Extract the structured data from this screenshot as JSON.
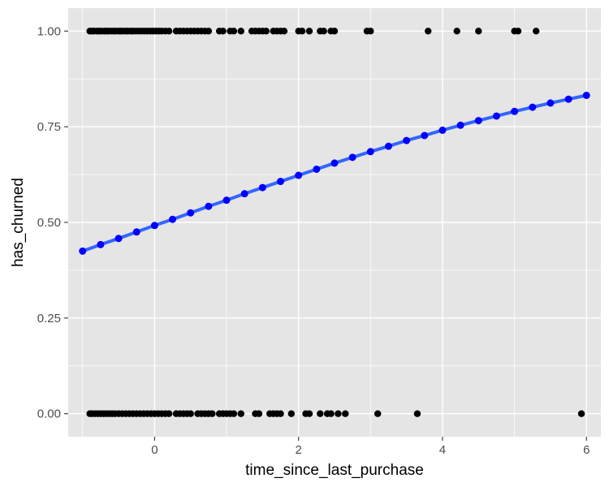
{
  "chart_data": {
    "type": "scatter",
    "title": "",
    "xlabel": "time_since_last_purchase",
    "ylabel": "has_churned",
    "xlim": [
      -1.2,
      6.2
    ],
    "ylim": [
      -0.06,
      1.06
    ],
    "x_ticks": [
      0,
      2,
      4,
      6
    ],
    "x_tick_labels": [
      "0",
      "2",
      "4",
      "6"
    ],
    "y_ticks": [
      0,
      0.25,
      0.5,
      0.75,
      1
    ],
    "y_tick_labels": [
      "0.00",
      "0.25",
      "0.50",
      "0.75",
      "1.00"
    ],
    "grid": true,
    "legend": "none",
    "colors": {
      "panel": "#e5e5e5",
      "grid": "#ffffff",
      "observed_points": "#000000",
      "fit_line": "#3366ff",
      "predicted_points": "#0000ff"
    },
    "series": [
      {
        "kind": "observed-churned",
        "x": [
          -0.9,
          -0.87,
          -0.84,
          -0.8,
          -0.77,
          -0.74,
          -0.7,
          -0.67,
          -0.64,
          -0.6,
          -0.57,
          -0.54,
          -0.5,
          -0.47,
          -0.44,
          -0.4,
          -0.37,
          -0.33,
          -0.3,
          -0.26,
          -0.22,
          -0.18,
          -0.14,
          -0.1,
          -0.06,
          -0.02,
          0.02,
          0.06,
          0.1,
          0.15,
          0.2,
          0.3,
          0.35,
          0.4,
          0.45,
          0.5,
          0.55,
          0.6,
          0.65,
          0.7,
          0.75,
          0.9,
          0.95,
          1.05,
          1.1,
          1.2,
          1.35,
          1.4,
          1.45,
          1.5,
          1.55,
          1.65,
          1.7,
          1.75,
          1.8,
          2.0,
          2.05,
          2.15,
          2.3,
          2.35,
          2.45,
          2.5,
          2.95,
          3.0,
          3.8,
          4.2,
          4.5,
          5.0,
          5.05,
          5.3
        ],
        "y": [
          1,
          1,
          1,
          1,
          1,
          1,
          1,
          1,
          1,
          1,
          1,
          1,
          1,
          1,
          1,
          1,
          1,
          1,
          1,
          1,
          1,
          1,
          1,
          1,
          1,
          1,
          1,
          1,
          1,
          1,
          1,
          1,
          1,
          1,
          1,
          1,
          1,
          1,
          1,
          1,
          1,
          1,
          1,
          1,
          1,
          1,
          1,
          1,
          1,
          1,
          1,
          1,
          1,
          1,
          1,
          1,
          1,
          1,
          1,
          1,
          1,
          1,
          1,
          1,
          1,
          1,
          1,
          1,
          1,
          1
        ]
      },
      {
        "kind": "observed-not-churned",
        "x": [
          -0.9,
          -0.87,
          -0.83,
          -0.79,
          -0.75,
          -0.71,
          -0.67,
          -0.63,
          -0.59,
          -0.55,
          -0.5,
          -0.45,
          -0.4,
          -0.35,
          -0.3,
          -0.25,
          -0.2,
          -0.15,
          -0.1,
          -0.05,
          0.0,
          0.05,
          0.1,
          0.15,
          0.2,
          0.3,
          0.35,
          0.4,
          0.45,
          0.5,
          0.6,
          0.65,
          0.7,
          0.75,
          0.8,
          0.9,
          0.95,
          1.0,
          1.05,
          1.1,
          1.2,
          1.4,
          1.45,
          1.6,
          1.65,
          1.7,
          1.75,
          1.9,
          2.1,
          2.15,
          2.3,
          2.4,
          2.45,
          2.55,
          2.65,
          3.1,
          3.65,
          5.93
        ],
        "y": [
          0,
          0,
          0,
          0,
          0,
          0,
          0,
          0,
          0,
          0,
          0,
          0,
          0,
          0,
          0,
          0,
          0,
          0,
          0,
          0,
          0,
          0,
          0,
          0,
          0,
          0,
          0,
          0,
          0,
          0,
          0,
          0,
          0,
          0,
          0,
          0,
          0,
          0,
          0,
          0,
          0,
          0,
          0,
          0,
          0,
          0,
          0,
          0,
          0,
          0,
          0,
          0,
          0,
          0,
          0,
          0,
          0,
          0
        ]
      },
      {
        "kind": "predicted",
        "x": [
          -1.0,
          -0.75,
          -0.5,
          -0.25,
          0.0,
          0.25,
          0.5,
          0.75,
          1.0,
          1.25,
          1.5,
          1.75,
          2.0,
          2.25,
          2.5,
          2.75,
          3.0,
          3.25,
          3.5,
          3.75,
          4.0,
          4.25,
          4.5,
          4.75,
          5.0,
          5.25,
          5.5,
          5.75,
          6.0
        ],
        "y": [
          0.425,
          0.442,
          0.458,
          0.475,
          0.492,
          0.508,
          0.525,
          0.542,
          0.558,
          0.575,
          0.591,
          0.607,
          0.623,
          0.639,
          0.655,
          0.67,
          0.685,
          0.699,
          0.714,
          0.727,
          0.741,
          0.754,
          0.766,
          0.778,
          0.79,
          0.801,
          0.812,
          0.822,
          0.832
        ]
      }
    ]
  }
}
